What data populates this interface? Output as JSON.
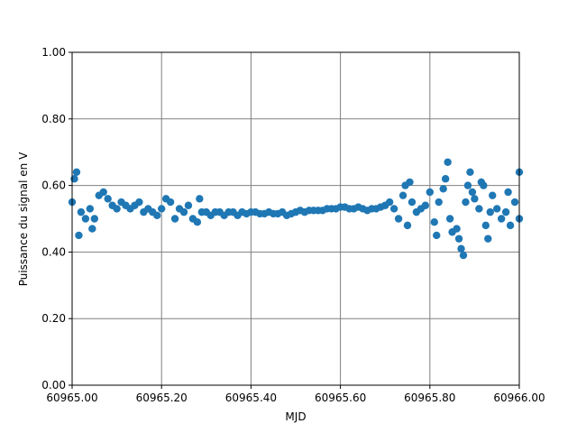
{
  "chart_data": {
    "type": "scatter",
    "x_label": "MJD",
    "y_label": "Puissance du signal en V",
    "color": "#1f77b4",
    "grid": true,
    "xlim": [
      60965.0,
      60966.0
    ],
    "ylim": [
      0,
      1
    ],
    "xticks": [
      {
        "value": 60965.0,
        "label": "60965.00"
      },
      {
        "value": 60965.2,
        "label": "60965.20"
      },
      {
        "value": 60965.4,
        "label": "60965.40"
      },
      {
        "value": 60965.6,
        "label": "60965.60"
      },
      {
        "value": 60965.8,
        "label": "60965.80"
      },
      {
        "value": 60966.0,
        "label": "60966.00"
      }
    ],
    "yticks": [
      {
        "value": 0,
        "label": "0.00"
      },
      {
        "value": 0.2,
        "label": "0.20"
      },
      {
        "value": 0.4,
        "label": "0.40"
      },
      {
        "value": 0.6,
        "label": "0.60"
      },
      {
        "value": 0.8,
        "label": "0.80"
      },
      {
        "value": 1,
        "label": "1.00"
      }
    ],
    "x": [
      60965.0,
      60965.005,
      60965.01,
      60965.015,
      60965.02,
      60965.03,
      60965.04,
      60965.045,
      60965.05,
      60965.06,
      60965.07,
      60965.08,
      60965.09,
      60965.1,
      60965.11,
      60965.12,
      60965.13,
      60965.14,
      60965.15,
      60965.16,
      60965.17,
      60965.18,
      60965.19,
      60965.2,
      60965.21,
      60965.22,
      60965.23,
      60965.24,
      60965.25,
      60965.26,
      60965.27,
      60965.28,
      60965.285,
      60965.29,
      60965.3,
      60965.31,
      60965.32,
      60965.33,
      60965.34,
      60965.35,
      60965.36,
      60965.37,
      60965.38,
      60965.39,
      60965.4,
      60965.41,
      60965.42,
      60965.43,
      60965.44,
      60965.45,
      60965.46,
      60965.47,
      60965.48,
      60965.49,
      60965.5,
      60965.51,
      60965.52,
      60965.53,
      60965.54,
      60965.55,
      60965.56,
      60965.57,
      60965.58,
      60965.59,
      60965.6,
      60965.61,
      60965.62,
      60965.63,
      60965.64,
      60965.65,
      60965.66,
      60965.67,
      60965.68,
      60965.69,
      60965.7,
      60965.71,
      60965.72,
      60965.73,
      60965.74,
      60965.745,
      60965.75,
      60965.755,
      60965.76,
      60965.77,
      60965.78,
      60965.79,
      60965.8,
      60965.81,
      60965.815,
      60965.82,
      60965.83,
      60965.835,
      60965.84,
      60965.845,
      60965.85,
      60965.86,
      60965.865,
      60965.87,
      60965.875,
      60965.88,
      60965.885,
      60965.89,
      60965.895,
      60965.9,
      60965.91,
      60965.915,
      60965.92,
      60965.925,
      60965.93,
      60965.935,
      60965.94,
      60965.95,
      60965.96,
      60965.97,
      60965.975,
      60965.98,
      60965.99,
      60966.0,
      60966.0
    ],
    "values": [
      0.55,
      0.62,
      0.64,
      0.45,
      0.52,
      0.5,
      0.53,
      0.47,
      0.5,
      0.57,
      0.58,
      0.56,
      0.54,
      0.53,
      0.55,
      0.54,
      0.53,
      0.54,
      0.55,
      0.52,
      0.53,
      0.52,
      0.51,
      0.53,
      0.56,
      0.55,
      0.5,
      0.53,
      0.52,
      0.54,
      0.5,
      0.49,
      0.56,
      0.52,
      0.52,
      0.51,
      0.52,
      0.52,
      0.51,
      0.52,
      0.52,
      0.51,
      0.52,
      0.515,
      0.52,
      0.52,
      0.515,
      0.515,
      0.52,
      0.515,
      0.515,
      0.52,
      0.51,
      0.515,
      0.52,
      0.525,
      0.52,
      0.525,
      0.525,
      0.525,
      0.525,
      0.53,
      0.53,
      0.53,
      0.535,
      0.535,
      0.53,
      0.53,
      0.535,
      0.53,
      0.525,
      0.53,
      0.53,
      0.535,
      0.54,
      0.55,
      0.53,
      0.5,
      0.57,
      0.6,
      0.48,
      0.61,
      0.55,
      0.52,
      0.53,
      0.54,
      0.58,
      0.49,
      0.45,
      0.55,
      0.59,
      0.62,
      0.67,
      0.5,
      0.46,
      0.47,
      0.44,
      0.41,
      0.39,
      0.55,
      0.6,
      0.64,
      0.58,
      0.56,
      0.53,
      0.61,
      0.6,
      0.48,
      0.44,
      0.52,
      0.57,
      0.53,
      0.5,
      0.52,
      0.58,
      0.48,
      0.55,
      0.64,
      0.5
    ]
  }
}
